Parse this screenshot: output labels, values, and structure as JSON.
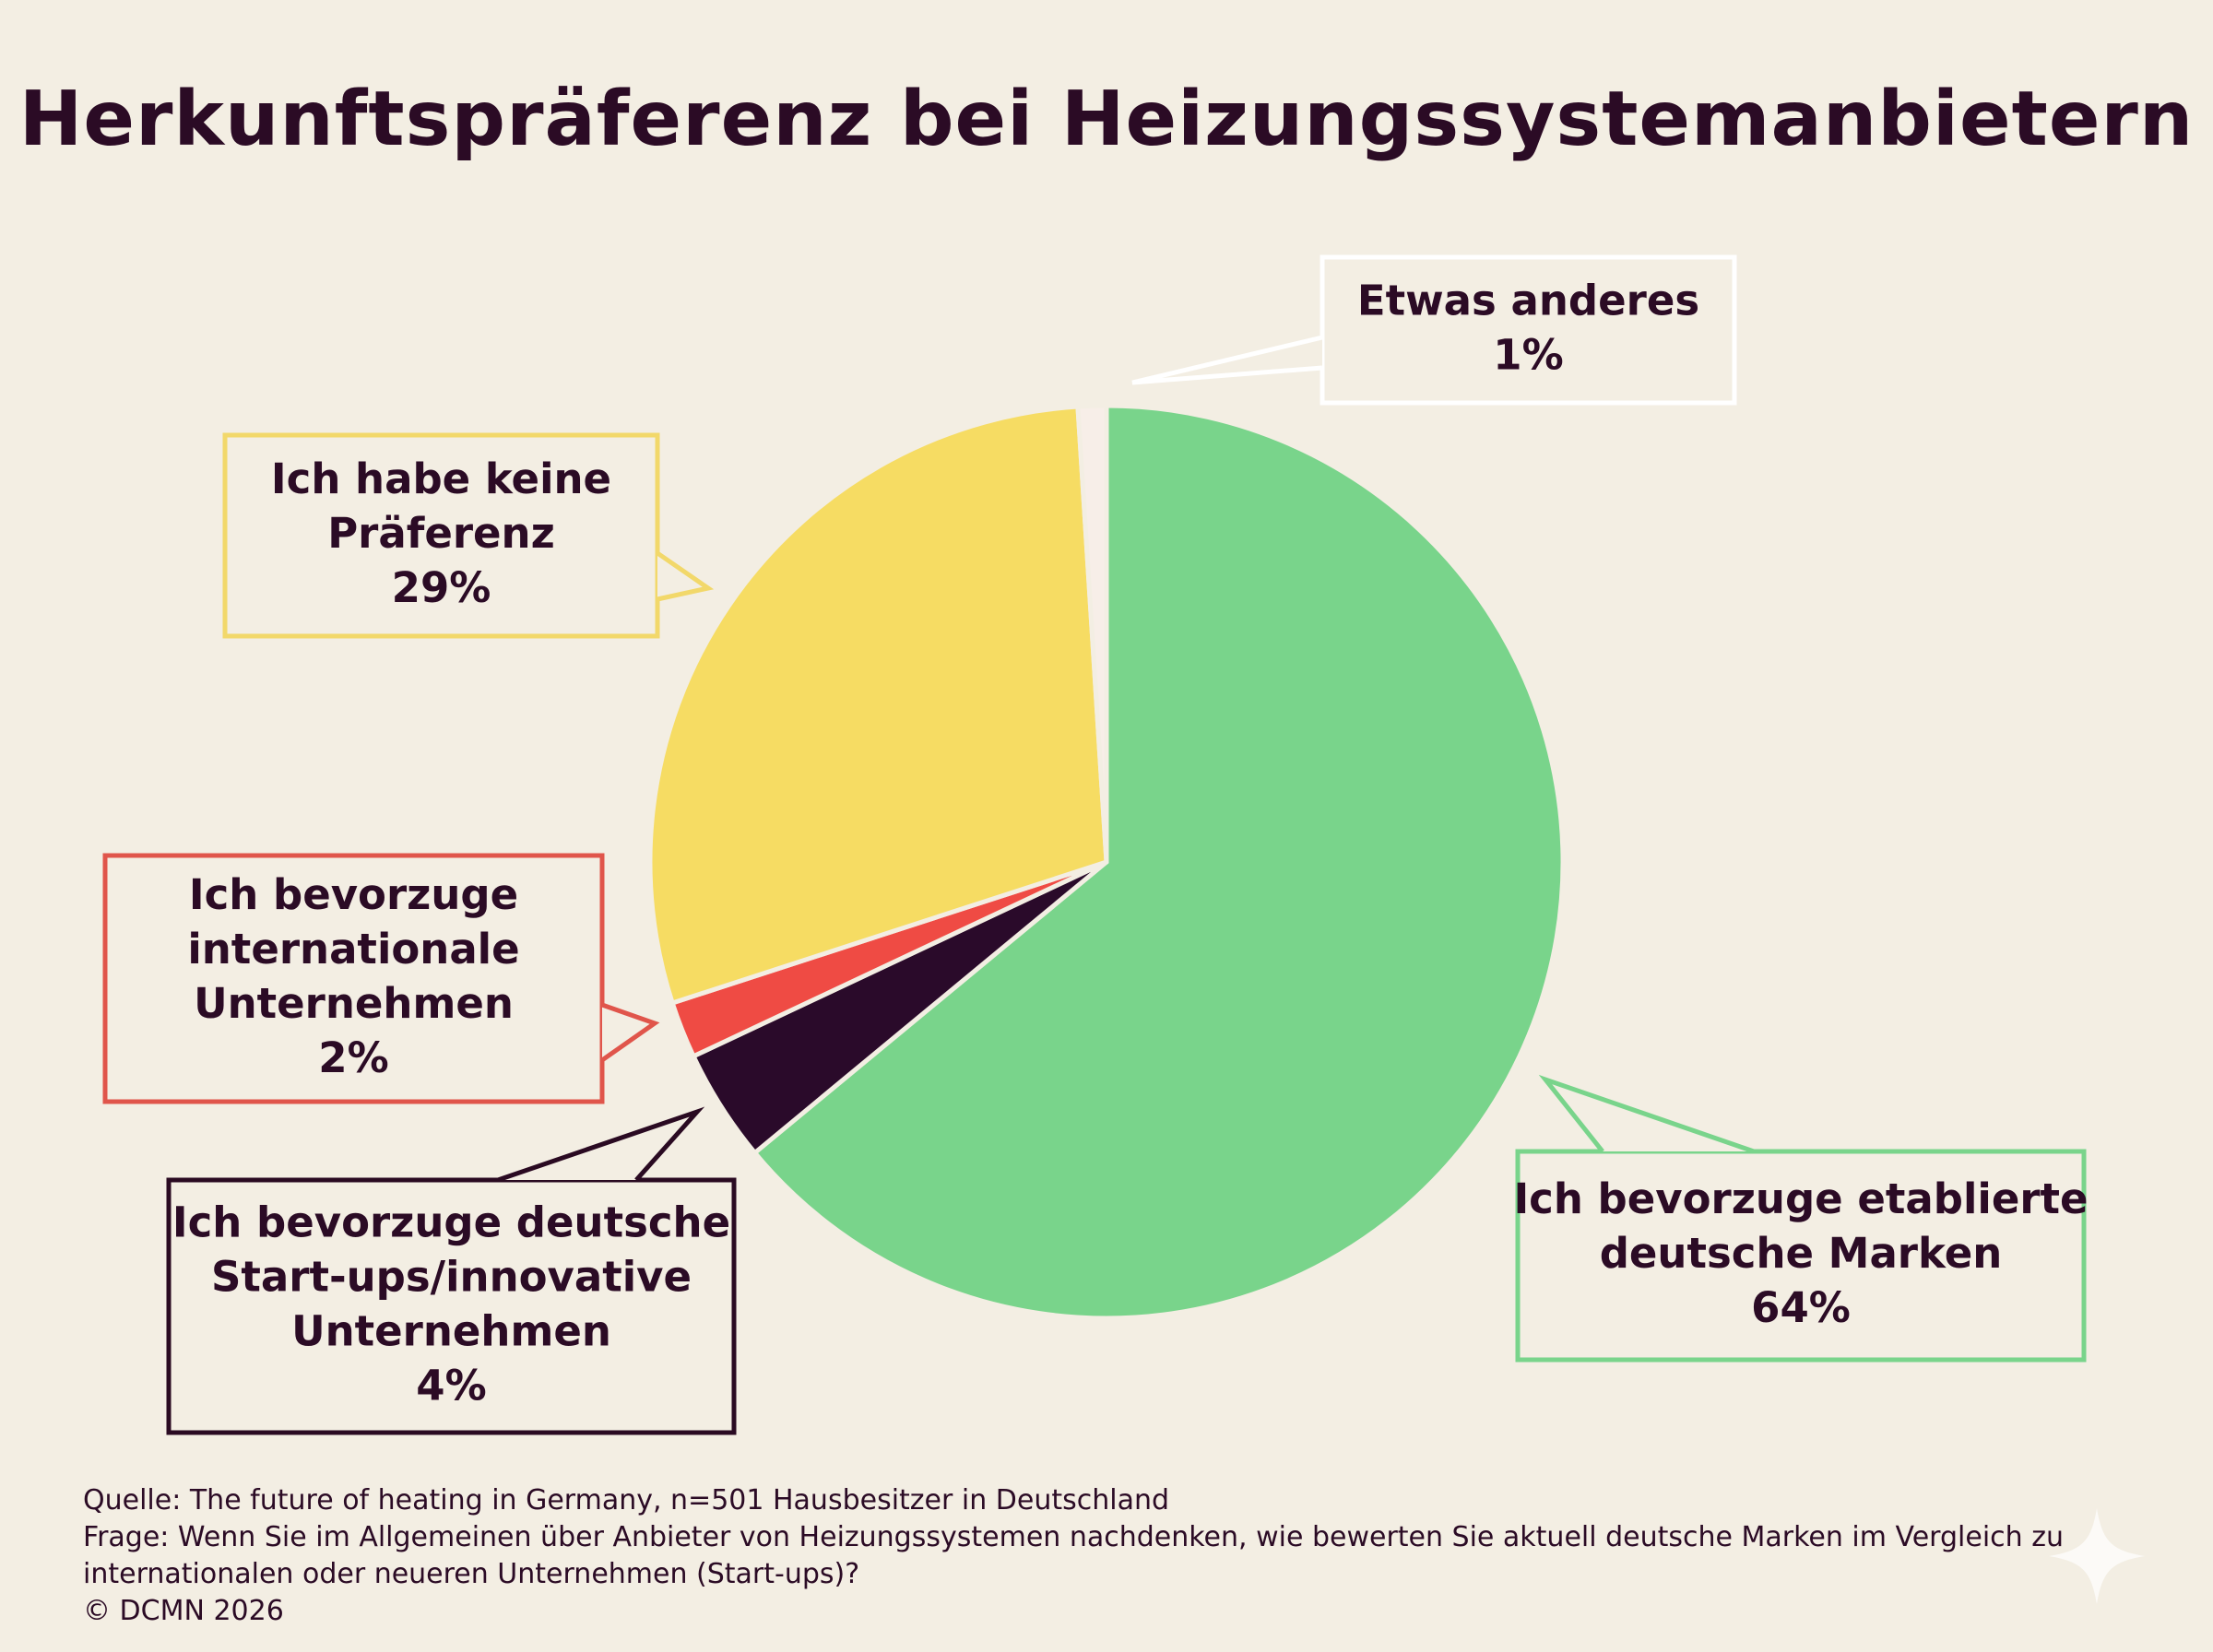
{
  "chart_data": {
    "type": "pie",
    "title": "Herkunftspräferenz bei Heizungssystemanbietern",
    "slices": [
      {
        "lines": [
          "Ich bevorzuge etablierte",
          "deutsche Marken"
        ],
        "value": 64,
        "value_label": "64%",
        "color": "#79d48b"
      },
      {
        "lines": [
          "Ich bevorzuge deutsche",
          "Start-ups/innovative",
          "Unternehmen"
        ],
        "value": 4,
        "value_label": "4%",
        "color": "#2a0a2a"
      },
      {
        "lines": [
          "Ich bevorzuge",
          "internationale",
          "Unternehmen"
        ],
        "value": 2,
        "value_label": "2%",
        "color": "#ef4b44"
      },
      {
        "lines": [
          "Ich habe keine",
          "Präferenz"
        ],
        "value": 29,
        "value_label": "29%",
        "color": "#f6dc63"
      },
      {
        "lines": [
          "Etwas anderes"
        ],
        "value": 1,
        "value_label": "1%",
        "color": "#f7eee8"
      }
    ]
  },
  "footer": {
    "source": "Quelle: The future of heating in Germany, n=501 Hausbesitzer in Deutschland",
    "question_1": "Frage: Wenn Sie im Allgemeinen über Anbieter von Heizungssystemen nachdenken, wie bewerten Sie aktuell deutsche Marken im Vergleich zu",
    "question_2": "internationalen oder neueren Unternehmen (Start-ups)?",
    "copyright": "© DCMN 2026"
  },
  "colors": {
    "background": "#f3eee3",
    "text": "#2b0b25",
    "callout_fill": "#f3eee3"
  }
}
